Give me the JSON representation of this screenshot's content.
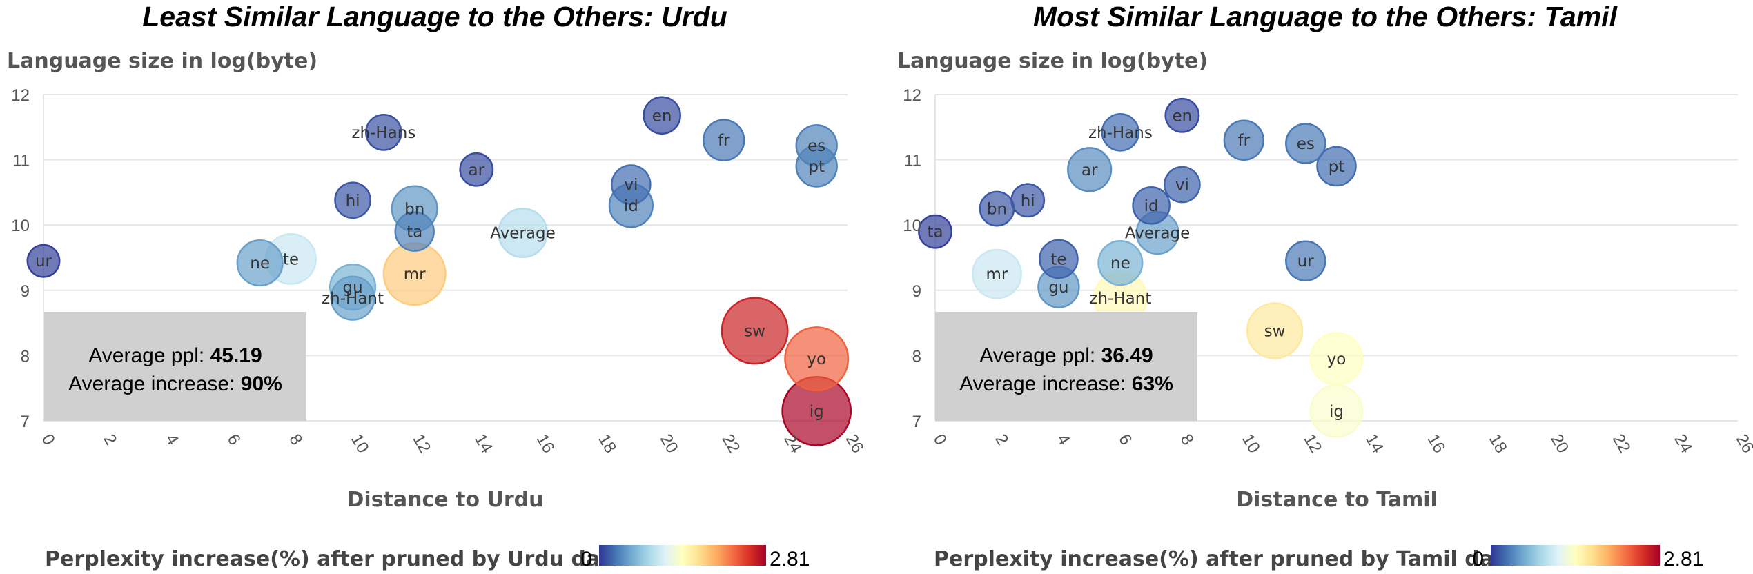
{
  "colorscale": [
    "#313695",
    "#4575b4",
    "#74add1",
    "#abd9e9",
    "#e0f3f8",
    "#ffffbf",
    "#fee090",
    "#fdae61",
    "#f46d43",
    "#d73027",
    "#a50026"
  ],
  "chart_data": [
    {
      "type": "scatter",
      "title": "Least Similar Language to the Others: Urdu",
      "xlabel": "Distance to Urdu",
      "ylabel": "Language size in log(byte)",
      "xlim": [
        0,
        26
      ],
      "ylim": [
        7,
        12
      ],
      "xticks": [
        "0",
        "2",
        "4",
        "6",
        "8",
        "10",
        "12",
        "14",
        "16",
        "18",
        "20",
        "22",
        "24",
        "26"
      ],
      "yticks": [
        "7",
        "8",
        "9",
        "10",
        "11",
        "12"
      ],
      "grid": true,
      "stats": {
        "ppl_label": "Average ppl:",
        "ppl_value": "45.19",
        "inc_label": "Average increase:",
        "inc_value": "90%"
      },
      "colorbar": {
        "title": "Perplexity increase(%) after pruned by Urdu data",
        "min_label": "0",
        "max_label": "2.81",
        "min": 0,
        "max": 2.81
      },
      "points": [
        {
          "label": "en",
          "x": 20,
          "y": 11.68,
          "color_value": 0.1,
          "size": 0.22
        },
        {
          "label": "fr",
          "x": 22,
          "y": 11.3,
          "color_value": 0.3,
          "size": 0.28
        },
        {
          "label": "es",
          "x": 25,
          "y": 11.22,
          "color_value": 0.35,
          "size": 0.28
        },
        {
          "label": "pt",
          "x": 25,
          "y": 10.9,
          "color_value": 0.35,
          "size": 0.28
        },
        {
          "label": "zh-Hans",
          "x": 11,
          "y": 11.42,
          "color_value": 0.12,
          "size": 0.2
        },
        {
          "label": "ar",
          "x": 14,
          "y": 10.85,
          "color_value": 0.1,
          "size": 0.16
        },
        {
          "label": "vi",
          "x": 19,
          "y": 10.62,
          "color_value": 0.25,
          "size": 0.25
        },
        {
          "label": "id",
          "x": 19,
          "y": 10.3,
          "color_value": 0.35,
          "size": 0.32
        },
        {
          "label": "hi",
          "x": 10,
          "y": 10.38,
          "color_value": 0.15,
          "size": 0.2
        },
        {
          "label": "bn",
          "x": 12,
          "y": 10.25,
          "color_value": 0.45,
          "size": 0.35
        },
        {
          "label": "ta",
          "x": 12,
          "y": 9.9,
          "color_value": 0.35,
          "size": 0.25
        },
        {
          "label": "Average",
          "x": 15.5,
          "y": 9.88,
          "color_value": 0.9,
          "size": 0.4
        },
        {
          "label": "ur",
          "x": 0,
          "y": 9.45,
          "color_value": 0.05,
          "size": 0.15
        },
        {
          "label": "ne",
          "x": 7,
          "y": 9.42,
          "color_value": 0.5,
          "size": 0.35
        },
        {
          "label": "te",
          "x": 8,
          "y": 9.48,
          "color_value": 1.0,
          "size": 0.42
        },
        {
          "label": "gu",
          "x": 10,
          "y": 9.05,
          "color_value": 0.6,
          "size": 0.35
        },
        {
          "label": "zh-Hant",
          "x": 10,
          "y": 8.88,
          "color_value": 0.5,
          "size": 0.32
        },
        {
          "label": "mr",
          "x": 12,
          "y": 9.25,
          "color_value": 1.8,
          "size": 0.6
        },
        {
          "label": "sw",
          "x": 23,
          "y": 8.38,
          "color_value": 2.6,
          "size": 0.66
        },
        {
          "label": "yo",
          "x": 25,
          "y": 7.95,
          "color_value": 2.3,
          "size": 0.62
        },
        {
          "label": "ig",
          "x": 25,
          "y": 7.15,
          "color_value": 2.78,
          "size": 0.7
        }
      ]
    },
    {
      "type": "scatter",
      "title": "Most Similar Language to the Others: Tamil",
      "xlabel": "Distance to Tamil",
      "ylabel": "Language size in log(byte)",
      "xlim": [
        0,
        26
      ],
      "ylim": [
        7,
        12
      ],
      "xticks": [
        "0",
        "2",
        "4",
        "6",
        "8",
        "10",
        "12",
        "14",
        "16",
        "18",
        "20",
        "22",
        "24",
        "26"
      ],
      "yticks": [
        "7",
        "8",
        "9",
        "10",
        "11",
        "12"
      ],
      "grid": true,
      "stats": {
        "ppl_label": "Average ppl:",
        "ppl_value": "36.49",
        "inc_label": "Average increase:",
        "inc_value": "63%"
      },
      "colorbar": {
        "title": "Perplexity increase(%) after pruned by Tamil data",
        "min_label": "0",
        "max_label": "2.81",
        "min": 0,
        "max": 2.81
      },
      "points": [
        {
          "label": "en",
          "x": 8,
          "y": 11.68,
          "color_value": 0.1,
          "size": 0.17
        },
        {
          "label": "zh-Hans",
          "x": 6,
          "y": 11.42,
          "color_value": 0.25,
          "size": 0.22
        },
        {
          "label": "fr",
          "x": 10,
          "y": 11.3,
          "color_value": 0.3,
          "size": 0.26
        },
        {
          "label": "es",
          "x": 12,
          "y": 11.25,
          "color_value": 0.3,
          "size": 0.26
        },
        {
          "label": "pt",
          "x": 13,
          "y": 10.9,
          "color_value": 0.25,
          "size": 0.25
        },
        {
          "label": "ar",
          "x": 5,
          "y": 10.85,
          "color_value": 0.4,
          "size": 0.32
        },
        {
          "label": "vi",
          "x": 8,
          "y": 10.62,
          "color_value": 0.2,
          "size": 0.2
        },
        {
          "label": "hi",
          "x": 3,
          "y": 10.38,
          "color_value": 0.15,
          "size": 0.16
        },
        {
          "label": "bn",
          "x": 2,
          "y": 10.25,
          "color_value": 0.15,
          "size": 0.18
        },
        {
          "label": "id",
          "x": 7,
          "y": 10.3,
          "color_value": 0.2,
          "size": 0.22
        },
        {
          "label": "ta",
          "x": 0,
          "y": 9.9,
          "color_value": 0.05,
          "size": 0.16
        },
        {
          "label": "Average",
          "x": 7.2,
          "y": 9.88,
          "color_value": 0.5,
          "size": 0.3
        },
        {
          "label": "te",
          "x": 4,
          "y": 9.48,
          "color_value": 0.2,
          "size": 0.24
        },
        {
          "label": "ne",
          "x": 6,
          "y": 9.42,
          "color_value": 0.6,
          "size": 0.33
        },
        {
          "label": "ur",
          "x": 12,
          "y": 9.45,
          "color_value": 0.3,
          "size": 0.26
        },
        {
          "label": "mr",
          "x": 2,
          "y": 9.25,
          "color_value": 1.0,
          "size": 0.4
        },
        {
          "label": "gu",
          "x": 4,
          "y": 9.05,
          "color_value": 0.45,
          "size": 0.28
        },
        {
          "label": "zh-Hant",
          "x": 6,
          "y": 8.88,
          "color_value": 1.45,
          "size": 0.46
        },
        {
          "label": "sw",
          "x": 11,
          "y": 8.38,
          "color_value": 1.6,
          "size": 0.5
        },
        {
          "label": "yo",
          "x": 13,
          "y": 7.95,
          "color_value": 1.4,
          "size": 0.45
        },
        {
          "label": "ig",
          "x": 13,
          "y": 7.15,
          "color_value": 1.35,
          "size": 0.45
        }
      ]
    }
  ]
}
